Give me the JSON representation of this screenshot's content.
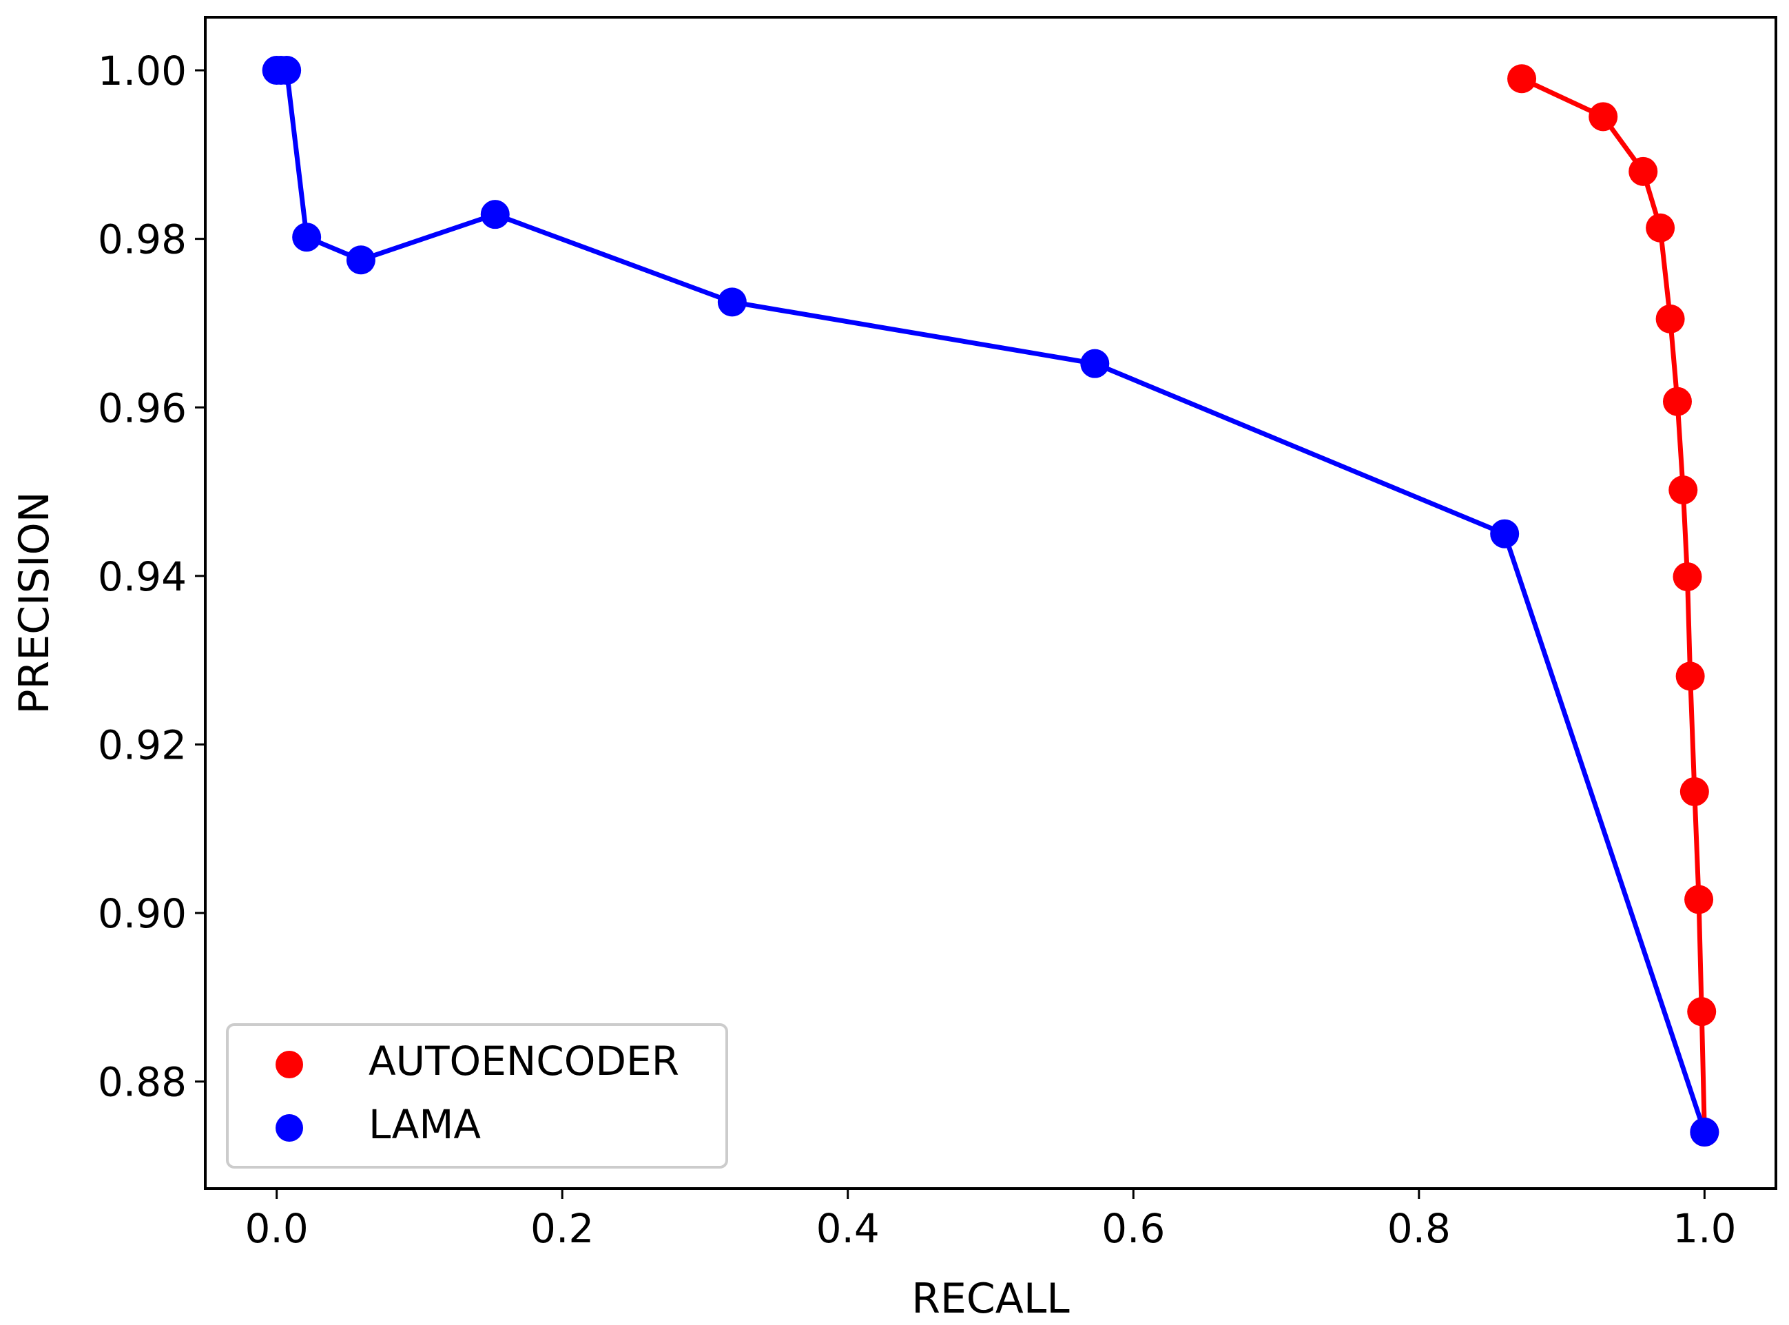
{
  "chart_data": {
    "type": "line",
    "title": "",
    "xlabel": "RECALL",
    "ylabel": "PRECISION",
    "xlim": [
      -0.05,
      1.05
    ],
    "ylim": [
      0.8673,
      1.0063
    ],
    "xticks": [
      0.0,
      0.2,
      0.4,
      0.6,
      0.8,
      1.0
    ],
    "xtick_labels": [
      "0.0",
      "0.2",
      "0.4",
      "0.6",
      "0.8",
      "1.0"
    ],
    "yticks": [
      0.88,
      0.9,
      0.92,
      0.94,
      0.96,
      0.98,
      1.0
    ],
    "ytick_labels": [
      "0.88",
      "0.90",
      "0.92",
      "0.94",
      "0.96",
      "0.98",
      "1.00"
    ],
    "grid": false,
    "legend_position": "bottom-left",
    "series": [
      {
        "name": "AUTOENCODER",
        "color": "#ff0000",
        "marker": "circle",
        "x": [
          0.872,
          0.929,
          0.957,
          0.969,
          0.976,
          0.981,
          0.985,
          0.988,
          0.99,
          0.993,
          0.996,
          0.998,
          1.0
        ],
        "y": [
          0.999,
          0.9945,
          0.988,
          0.9813,
          0.9705,
          0.9607,
          0.9502,
          0.9399,
          0.9281,
          0.9144,
          0.9016,
          0.8883,
          0.874
        ]
      },
      {
        "name": "LAMA",
        "color": "#0000ff",
        "marker": "circle",
        "x": [
          0.0,
          0.003,
          0.007,
          0.021,
          0.059,
          0.153,
          0.319,
          0.573,
          0.86,
          1.0
        ],
        "y": [
          1.0,
          1.0,
          1.0,
          0.9802,
          0.9775,
          0.9829,
          0.9725,
          0.9652,
          0.945,
          0.874
        ]
      }
    ]
  }
}
